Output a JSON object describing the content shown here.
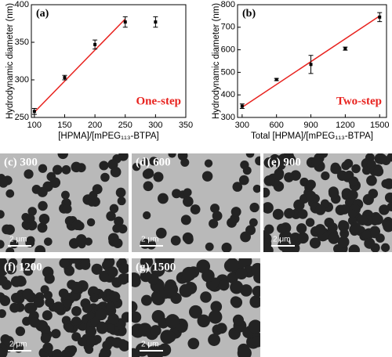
{
  "chart_data": [
    {
      "type": "scatter",
      "panel_label": "(a)",
      "annotation": "One-step",
      "annotation_color": "#e8231f",
      "xlabel": "[HPMA]/[mPEG₁₁₃-BTPA]",
      "ylabel": "Hydrodynamic diameter (nm)",
      "xlim": [
        95,
        350
      ],
      "ylim": [
        250,
        400
      ],
      "xticks": [
        100,
        150,
        200,
        250,
        300,
        350
      ],
      "yticks": [
        250,
        300,
        350,
        400
      ],
      "x": [
        100,
        150,
        200,
        250,
        300
      ],
      "values": [
        258,
        303,
        347,
        377,
        377
      ],
      "errors": [
        4,
        3,
        6,
        7,
        7
      ],
      "color": "#000000",
      "fit": {
        "x": [
          100,
          250
        ],
        "values": [
          257,
          381
        ],
        "color": "#e8231f"
      }
    },
    {
      "type": "scatter",
      "panel_label": "(b)",
      "annotation": "Two-step",
      "annotation_color": "#e8231f",
      "xlabel": "Total [HPMA]/[mPEG₁₁₃-BTPA]",
      "ylabel": "Hydrodynamic diameter (nm)",
      "xlim": [
        260,
        1560
      ],
      "ylim": [
        300,
        800
      ],
      "xticks": [
        300,
        600,
        900,
        1200,
        1500
      ],
      "yticks": [
        300,
        400,
        500,
        600,
        700,
        800
      ],
      "x": [
        300,
        600,
        900,
        1200,
        1500
      ],
      "values": [
        350,
        468,
        535,
        605,
        745
      ],
      "errors": [
        10,
        5,
        40,
        7,
        20
      ],
      "color": "#000000",
      "fit": {
        "x": [
          300,
          1500
        ],
        "values": [
          345,
          750
        ],
        "color": "#e8231f"
      }
    }
  ],
  "micrographs": [
    {
      "label": "(c) 300",
      "scale_bar": "2 μm"
    },
    {
      "label": "(d) 600",
      "scale_bar": "2 μm"
    },
    {
      "label": "(e) 900",
      "scale_bar": "2 μm"
    },
    {
      "label": "(f) 1200",
      "scale_bar": "2 μm"
    },
    {
      "label": "(g) 1500",
      "scale_bar": "2 μm"
    }
  ]
}
